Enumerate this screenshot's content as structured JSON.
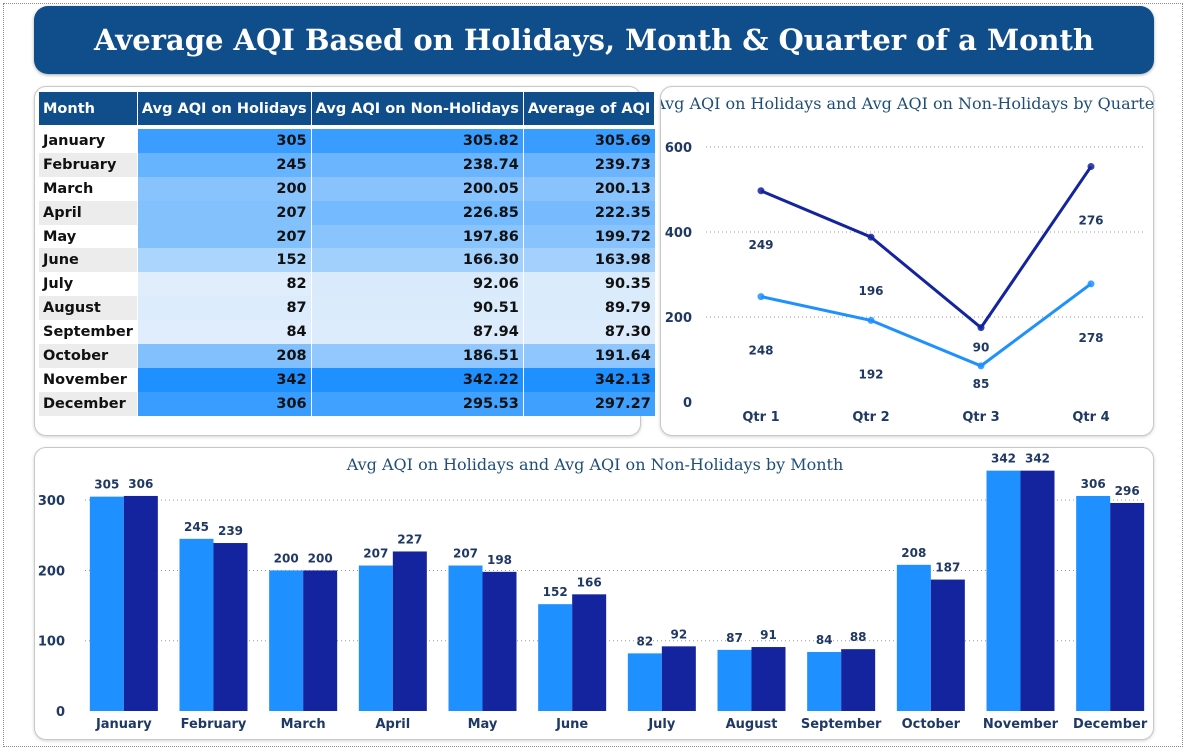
{
  "title": "Average AQI  Based on Holidays, Month & Quarter of a Month",
  "colors": {
    "holidays": "#1e90ff",
    "non_holidays": "#14239e",
    "header": "#104e8b"
  },
  "table": {
    "headers": [
      "Month",
      "Avg AQI on Holidays",
      "Avg AQI on Non-Holidays",
      "Average of AQI"
    ],
    "rows": [
      [
        "January",
        "305",
        "305.82",
        "305.69"
      ],
      [
        "February",
        "245",
        "238.74",
        "239.73"
      ],
      [
        "March",
        "200",
        "200.05",
        "200.13"
      ],
      [
        "April",
        "207",
        "226.85",
        "222.35"
      ],
      [
        "May",
        "207",
        "197.86",
        "199.72"
      ],
      [
        "June",
        "152",
        "166.30",
        "163.98"
      ],
      [
        "July",
        "82",
        "92.06",
        "90.35"
      ],
      [
        "August",
        "87",
        "90.51",
        "89.79"
      ],
      [
        "September",
        "84",
        "87.94",
        "87.30"
      ],
      [
        "October",
        "208",
        "186.51",
        "191.64"
      ],
      [
        "November",
        "342",
        "342.22",
        "342.13"
      ],
      [
        "December",
        "306",
        "295.53",
        "297.27"
      ]
    ]
  },
  "chart_data": [
    {
      "type": "line",
      "title": "Avg AQI on Holidays and Avg AQI on Non-Holidays by Quarter",
      "categories": [
        "Qtr 1",
        "Qtr 2",
        "Qtr 3",
        "Qtr 4"
      ],
      "yticks": [
        0,
        200,
        400,
        600
      ],
      "stacked": true,
      "series": [
        {
          "values": [
            248,
            192,
            85,
            278
          ],
          "color": "#1e90ff"
        },
        {
          "values": [
            249,
            196,
            90,
            276
          ],
          "color": "#14239e"
        }
      ],
      "grid": true
    },
    {
      "type": "bar",
      "title": "Avg AQI on Holidays and Avg AQI on Non-Holidays by Month",
      "categories": [
        "January",
        "February",
        "March",
        "April",
        "May",
        "June",
        "July",
        "August",
        "September",
        "October",
        "November",
        "December"
      ],
      "yticks": [
        0,
        100,
        200,
        300
      ],
      "ylim": [
        0,
        360
      ],
      "series": [
        {
          "values": [
            305,
            245,
            200,
            207,
            207,
            152,
            82,
            87,
            84,
            208,
            342,
            306
          ],
          "color": "#1e90ff"
        },
        {
          "values": [
            306,
            239,
            200,
            227,
            198,
            166,
            92,
            91,
            88,
            187,
            342,
            296
          ],
          "color": "#14239e"
        }
      ],
      "grid": true
    }
  ]
}
